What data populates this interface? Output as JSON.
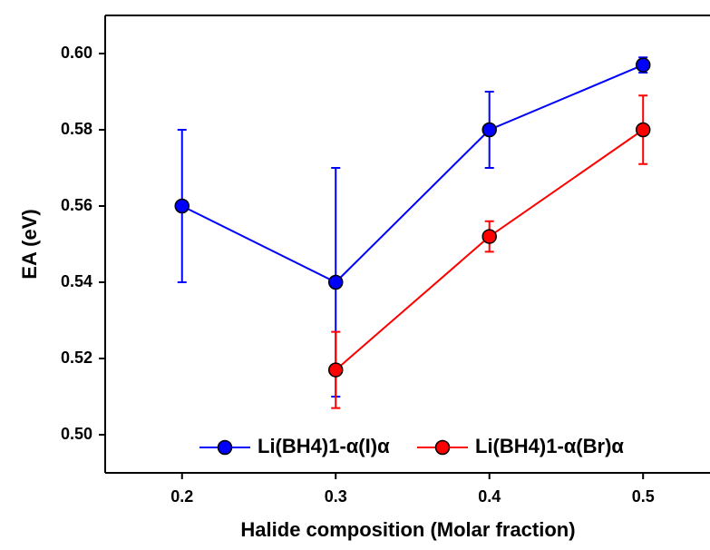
{
  "chart_data": {
    "type": "line",
    "x_label": "Halide composition (Molar fraction)",
    "y_label": "EA (eV)",
    "x": [
      0.2,
      0.3,
      0.4,
      0.5
    ],
    "series": [
      {
        "name": "Li(BH4)1-α(I)α",
        "color": "#0000ff",
        "values": [
          0.56,
          0.54,
          0.58,
          0.597
        ],
        "errors": [
          0.02,
          0.03,
          0.01,
          0.002
        ]
      },
      {
        "name": "Li(BH4)1-α(Br)α",
        "color": "#ff0000",
        "values": [
          null,
          0.517,
          0.552,
          0.58
        ],
        "errors": [
          null,
          0.01,
          0.004,
          0.009
        ]
      }
    ],
    "xlim": [
      0.15,
      0.54
    ],
    "ylim": [
      0.49,
      0.61
    ],
    "xticks": [
      0.2,
      0.3,
      0.4,
      0.5
    ],
    "yticks": [
      {
        "value": 0.5,
        "label": "0.50"
      },
      {
        "value": 0.52,
        "label": "0.52"
      },
      {
        "value": 0.54,
        "label": "0.54"
      },
      {
        "value": 0.56,
        "label": "0.56"
      },
      {
        "value": 0.58,
        "label": "0.58"
      },
      {
        "value": 0.6,
        "label": "0.60"
      }
    ],
    "legend": "lower center"
  }
}
